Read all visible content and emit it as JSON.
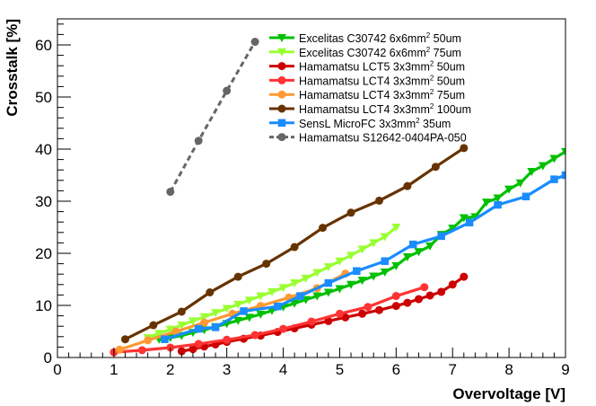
{
  "chart_data": {
    "type": "line",
    "title": "",
    "xlabel": "Overvoltage [V]",
    "ylabel": "Crosstalk [%]",
    "xlim": [
      0,
      9
    ],
    "ylim": [
      0,
      65
    ],
    "x_ticks": [
      0,
      1,
      2,
      3,
      4,
      5,
      6,
      7,
      8,
      9
    ],
    "y_ticks": [
      0,
      10,
      20,
      30,
      40,
      50,
      60
    ],
    "x_tick_labels": [
      "0",
      "1",
      "2",
      "3",
      "4",
      "5",
      "6",
      "7",
      "8",
      "9"
    ],
    "y_tick_labels": [
      "0",
      "10",
      "20",
      "30",
      "40",
      "50",
      "60"
    ],
    "grid": false,
    "legend_position": "top-center",
    "series": [
      {
        "name": "Excelitas C30742 6x6mm2 50um",
        "legend_parts": [
          "Excelitas C30742 6x6mm",
          "2",
          " 50um"
        ],
        "color": "#00c000",
        "marker": "triangle-down",
        "line_style": "solid",
        "points": [
          [
            1.8,
            3.5
          ],
          [
            2.0,
            3.8
          ],
          [
            2.2,
            4.2
          ],
          [
            2.4,
            4.8
          ],
          [
            2.6,
            5.3
          ],
          [
            2.8,
            5.9
          ],
          [
            3.0,
            6.5
          ],
          [
            3.2,
            7.1
          ],
          [
            3.4,
            7.7
          ],
          [
            3.6,
            8.3
          ],
          [
            3.8,
            9.0
          ],
          [
            4.0,
            9.7
          ],
          [
            4.2,
            10.4
          ],
          [
            4.4,
            11.1
          ],
          [
            4.6,
            11.8
          ],
          [
            4.8,
            12.5
          ],
          [
            5.0,
            13.2
          ],
          [
            5.2,
            14.0
          ],
          [
            5.4,
            14.8
          ],
          [
            5.6,
            15.6
          ],
          [
            5.8,
            16.4
          ],
          [
            6.0,
            17.6
          ],
          [
            6.2,
            19.3
          ],
          [
            6.4,
            20.3
          ],
          [
            6.6,
            21.4
          ],
          [
            6.8,
            23.6
          ],
          [
            7.0,
            24.8
          ],
          [
            7.2,
            26.8
          ],
          [
            7.4,
            27.0
          ],
          [
            7.6,
            29.8
          ],
          [
            7.8,
            30.6
          ],
          [
            8.0,
            32.3
          ],
          [
            8.2,
            33.5
          ],
          [
            8.4,
            35.7
          ],
          [
            8.6,
            36.8
          ],
          [
            8.8,
            38.2
          ],
          [
            9.0,
            39.5
          ]
        ]
      },
      {
        "name": "Excelitas C30742 6x6mm2 75um",
        "legend_parts": [
          "Excelitas C30742 6x6mm",
          "2",
          " 75um"
        ],
        "color": "#99ff33",
        "marker": "triangle-down",
        "line_style": "solid",
        "points": [
          [
            1.6,
            3.8
          ],
          [
            1.8,
            4.6
          ],
          [
            2.0,
            5.4
          ],
          [
            2.2,
            6.2
          ],
          [
            2.4,
            7.0
          ],
          [
            2.6,
            7.8
          ],
          [
            2.8,
            8.6
          ],
          [
            3.0,
            9.4
          ],
          [
            3.2,
            10.2
          ],
          [
            3.4,
            11.0
          ],
          [
            3.6,
            11.8
          ],
          [
            3.8,
            12.6
          ],
          [
            4.0,
            13.4
          ],
          [
            4.2,
            14.3
          ],
          [
            4.4,
            15.2
          ],
          [
            4.6,
            16.3
          ],
          [
            4.8,
            17.4
          ],
          [
            5.0,
            18.5
          ],
          [
            5.2,
            19.6
          ],
          [
            5.4,
            20.8
          ],
          [
            5.6,
            22.0
          ],
          [
            5.8,
            23.2
          ],
          [
            6.0,
            25.0
          ]
        ]
      },
      {
        "name": "Hamamatsu LCT5 3x3mm2 50um",
        "legend_parts": [
          "Hamamatsu LCT5 3x3mm",
          "2",
          " 50um"
        ],
        "color": "#cc0000",
        "marker": "circle",
        "line_style": "solid",
        "points": [
          [
            2.2,
            1.2
          ],
          [
            2.4,
            1.6
          ],
          [
            2.6,
            2.1
          ],
          [
            2.8,
            2.5
          ],
          [
            3.0,
            3.0
          ],
          [
            3.3,
            3.6
          ],
          [
            3.6,
            4.2
          ],
          [
            3.9,
            4.9
          ],
          [
            4.2,
            5.6
          ],
          [
            4.5,
            6.3
          ],
          [
            4.8,
            7.0
          ],
          [
            5.1,
            7.7
          ],
          [
            5.4,
            8.4
          ],
          [
            5.7,
            9.1
          ],
          [
            6.0,
            9.9
          ],
          [
            6.2,
            10.5
          ],
          [
            6.4,
            11.2
          ],
          [
            6.6,
            11.9
          ],
          [
            6.8,
            12.6
          ],
          [
            7.0,
            14.0
          ],
          [
            7.2,
            15.5
          ]
        ]
      },
      {
        "name": "Hamamatsu LCT4 3x3mm2 50um",
        "legend_parts": [
          "Hamamatsu LCT4 3x3mm",
          "2",
          " 50um"
        ],
        "color": "#ff3333",
        "marker": "circle",
        "line_style": "solid",
        "points": [
          [
            1.0,
            1.0
          ],
          [
            1.5,
            1.4
          ],
          [
            2.0,
            1.9
          ],
          [
            2.5,
            2.6
          ],
          [
            3.0,
            3.4
          ],
          [
            3.5,
            4.3
          ],
          [
            4.0,
            5.5
          ],
          [
            4.5,
            6.9
          ],
          [
            5.0,
            8.4
          ],
          [
            5.5,
            9.7
          ],
          [
            6.0,
            11.8
          ],
          [
            6.5,
            13.5
          ]
        ]
      },
      {
        "name": "Hamamatsu LCT4 3x3mm2 75um",
        "legend_parts": [
          "Hamamatsu LCT4 3x3mm",
          "2",
          " 75um"
        ],
        "color": "#ff9933",
        "marker": "circle",
        "line_style": "solid",
        "points": [
          [
            1.1,
            1.5
          ],
          [
            1.6,
            3.3
          ],
          [
            2.1,
            5.0
          ],
          [
            2.6,
            6.7
          ],
          [
            3.1,
            8.4
          ],
          [
            3.6,
            9.9
          ],
          [
            4.1,
            11.5
          ],
          [
            4.6,
            13.3
          ],
          [
            5.1,
            16.1
          ]
        ]
      },
      {
        "name": "Hamamatsu LCT4 3x3mm2 100um",
        "legend_parts": [
          "Hamamatsu LCT4 3x3mm",
          "2",
          " 100um"
        ],
        "color": "#663300",
        "marker": "circle",
        "line_style": "solid",
        "points": [
          [
            1.2,
            3.5
          ],
          [
            1.7,
            6.2
          ],
          [
            2.2,
            8.8
          ],
          [
            2.7,
            12.5
          ],
          [
            3.2,
            15.5
          ],
          [
            3.7,
            18.0
          ],
          [
            4.2,
            21.2
          ],
          [
            4.7,
            24.9
          ],
          [
            5.2,
            27.8
          ],
          [
            5.7,
            30.1
          ],
          [
            6.2,
            32.9
          ],
          [
            6.7,
            36.6
          ],
          [
            7.2,
            40.2
          ]
        ]
      },
      {
        "name": "SensL MicroFC 3x3mm2 35um",
        "legend_parts": [
          "SensL MicroFC 3x3mm",
          "2",
          " 35um"
        ],
        "color": "#1a8cff",
        "marker": "square",
        "line_style": "solid",
        "points": [
          [
            1.9,
            3.5
          ],
          [
            2.5,
            5.5
          ],
          [
            2.8,
            5.8
          ],
          [
            3.3,
            8.9
          ],
          [
            3.9,
            9.8
          ],
          [
            4.3,
            11.8
          ],
          [
            4.8,
            14.3
          ],
          [
            5.3,
            16.6
          ],
          [
            5.8,
            18.5
          ],
          [
            6.3,
            21.7
          ],
          [
            6.8,
            23.3
          ],
          [
            7.3,
            25.9
          ],
          [
            7.8,
            29.3
          ],
          [
            8.3,
            30.9
          ],
          [
            8.8,
            34.2
          ],
          [
            9.0,
            35.0
          ]
        ]
      },
      {
        "name": "Hamamatsu S12642-0404PA-050",
        "legend_parts": [
          "Hamamatsu S12642-0404PA-050",
          "",
          ""
        ],
        "color": "#666666",
        "marker": "circle",
        "line_style": "dashed",
        "points": [
          [
            2.0,
            31.8
          ],
          [
            2.5,
            41.6
          ],
          [
            3.0,
            51.2
          ],
          [
            3.5,
            60.6
          ]
        ]
      }
    ]
  }
}
